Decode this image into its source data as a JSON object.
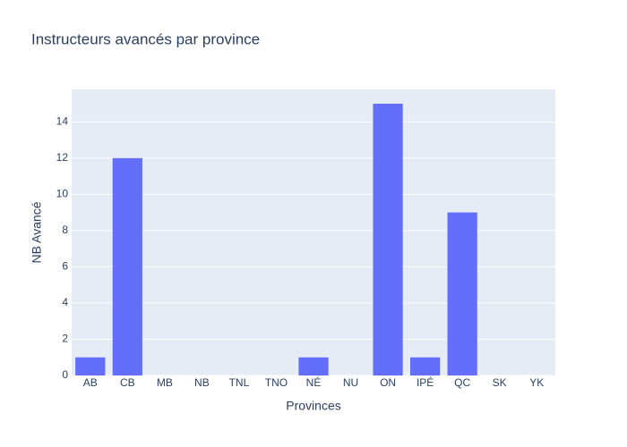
{
  "chart_data": {
    "type": "bar",
    "title": "Instructeurs avancés par province",
    "x_label": "Provinces",
    "y_label": "NB Avancé",
    "categories": [
      "AB",
      "CB",
      "MB",
      "NB",
      "TNL",
      "TNO",
      "NÉ",
      "NU",
      "ON",
      "IPÉ",
      "QC",
      "SK",
      "YK"
    ],
    "values": [
      1,
      12,
      0,
      0,
      0,
      0,
      1,
      0,
      15,
      1,
      9,
      0,
      0
    ],
    "color": "#636efa",
    "ylim": [
      0,
      15.79
    ],
    "yticks": [
      0,
      2,
      4,
      6,
      8,
      10,
      12,
      14
    ],
    "grid": true
  }
}
